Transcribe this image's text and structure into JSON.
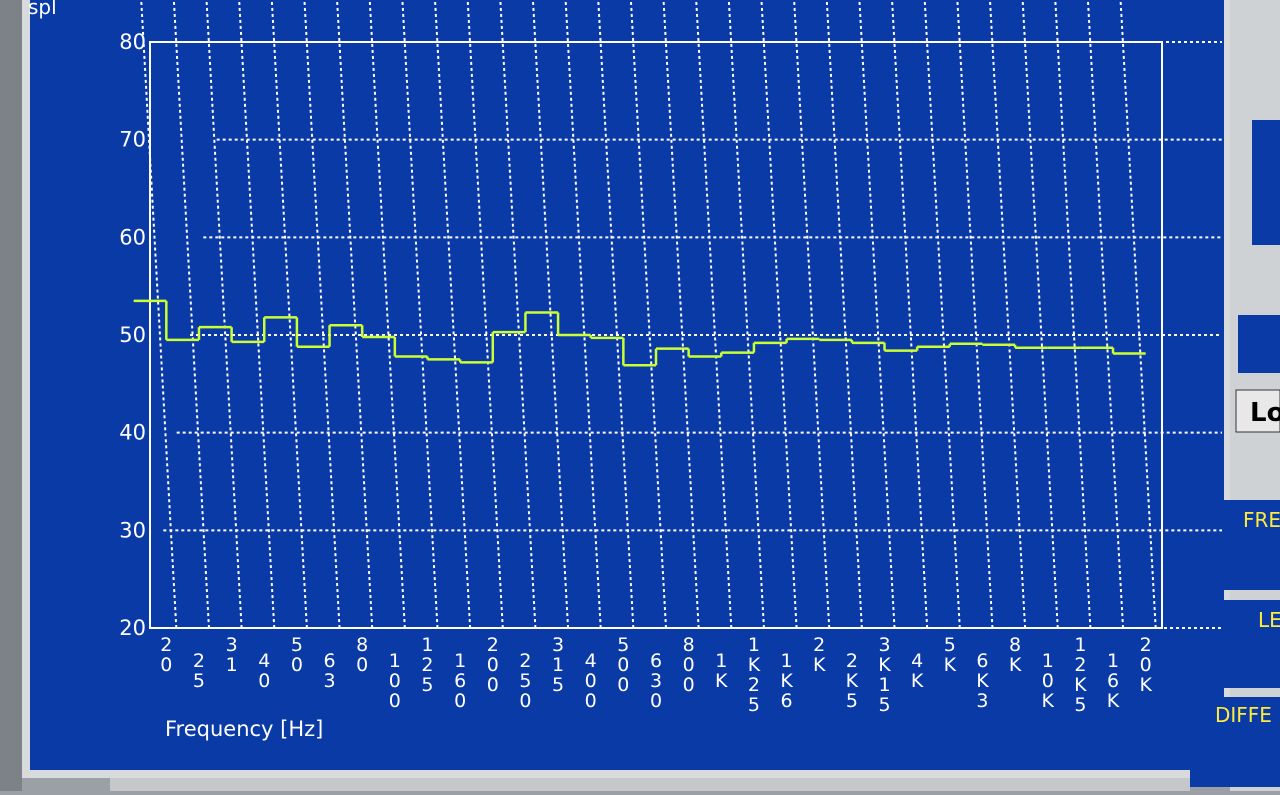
{
  "chart_data": {
    "type": "line",
    "step": true,
    "y_label": "spl",
    "x_label": "Frequency [Hz]",
    "categories": [
      "20",
      "25",
      "31",
      "40",
      "50",
      "63",
      "80",
      "100",
      "125",
      "160",
      "200",
      "250",
      "315",
      "400",
      "500",
      "630",
      "800",
      "1K",
      "1K25",
      "1K6",
      "2K",
      "2K5",
      "3K15",
      "4K",
      "5K",
      "6K3",
      "8K",
      "10K",
      "12K5",
      "16K",
      "20K"
    ],
    "series": [
      {
        "color": "#ccff33",
        "values": [
          53.5,
          49.5,
          50.8,
          49.3,
          51.8,
          48.8,
          51,
          49.8,
          47.8,
          47.5,
          47.2,
          50.3,
          52.3,
          50,
          49.7,
          46.9,
          48.6,
          47.8,
          48.2,
          49.2,
          49.6,
          49.5,
          49.2,
          48.4,
          48.8,
          49.1,
          49,
          48.7,
          48.7,
          48.7,
          48.1
        ]
      }
    ],
    "ylim": [
      20,
      80
    ],
    "yticks": [
      20,
      30,
      40,
      50,
      60,
      70,
      80
    ],
    "grid": true
  },
  "side_panel": {
    "button": "Lo",
    "labels": [
      "FRE",
      "LE",
      "DIFFE"
    ]
  }
}
